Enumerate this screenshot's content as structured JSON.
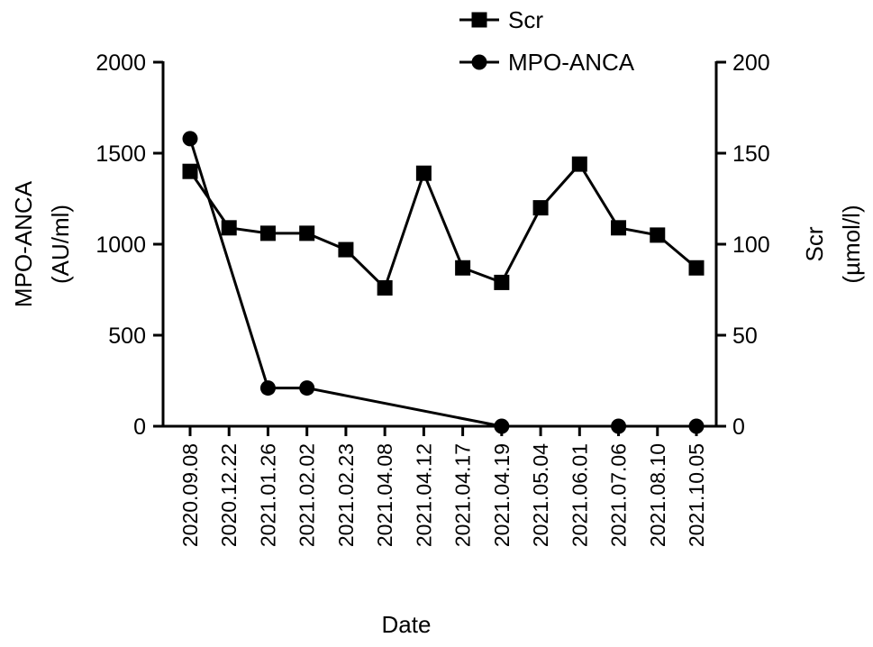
{
  "chart_data": {
    "type": "line",
    "xlabel": "Date",
    "categories": [
      "2020.09.08",
      "2020.12.22",
      "2021.01.26",
      "2021.02.02",
      "2021.02.23",
      "2021.04.08",
      "2021.04.12",
      "2021.04.17",
      "2021.04.19",
      "2021.05.04",
      "2021.06.01",
      "2021.07.06",
      "2021.08.10",
      "2021.10.05"
    ],
    "y_left": {
      "label_line1": "MPO-ANCA",
      "label_line2": "(AU/ml)",
      "range": [
        0,
        2000
      ],
      "ticks": [
        0,
        500,
        1000,
        1500,
        2000
      ]
    },
    "y_right": {
      "label_line1": "Scr",
      "label_line2": "(µmol/l)",
      "range": [
        0,
        200
      ],
      "ticks": [
        0,
        50,
        100,
        150,
        200
      ]
    },
    "series": [
      {
        "name": "Scr",
        "marker": "square",
        "axis": "right",
        "values": [
          140,
          109,
          106,
          106,
          97,
          76,
          139,
          87,
          79,
          120,
          144,
          109,
          105,
          87
        ]
      },
      {
        "name": "MPO-ANCA",
        "marker": "circle",
        "axis": "left",
        "values": [
          1580,
          null,
          210,
          210,
          null,
          null,
          null,
          null,
          0,
          null,
          null,
          0,
          null,
          0
        ]
      }
    ],
    "legend_position": "top-right",
    "grid": false
  }
}
